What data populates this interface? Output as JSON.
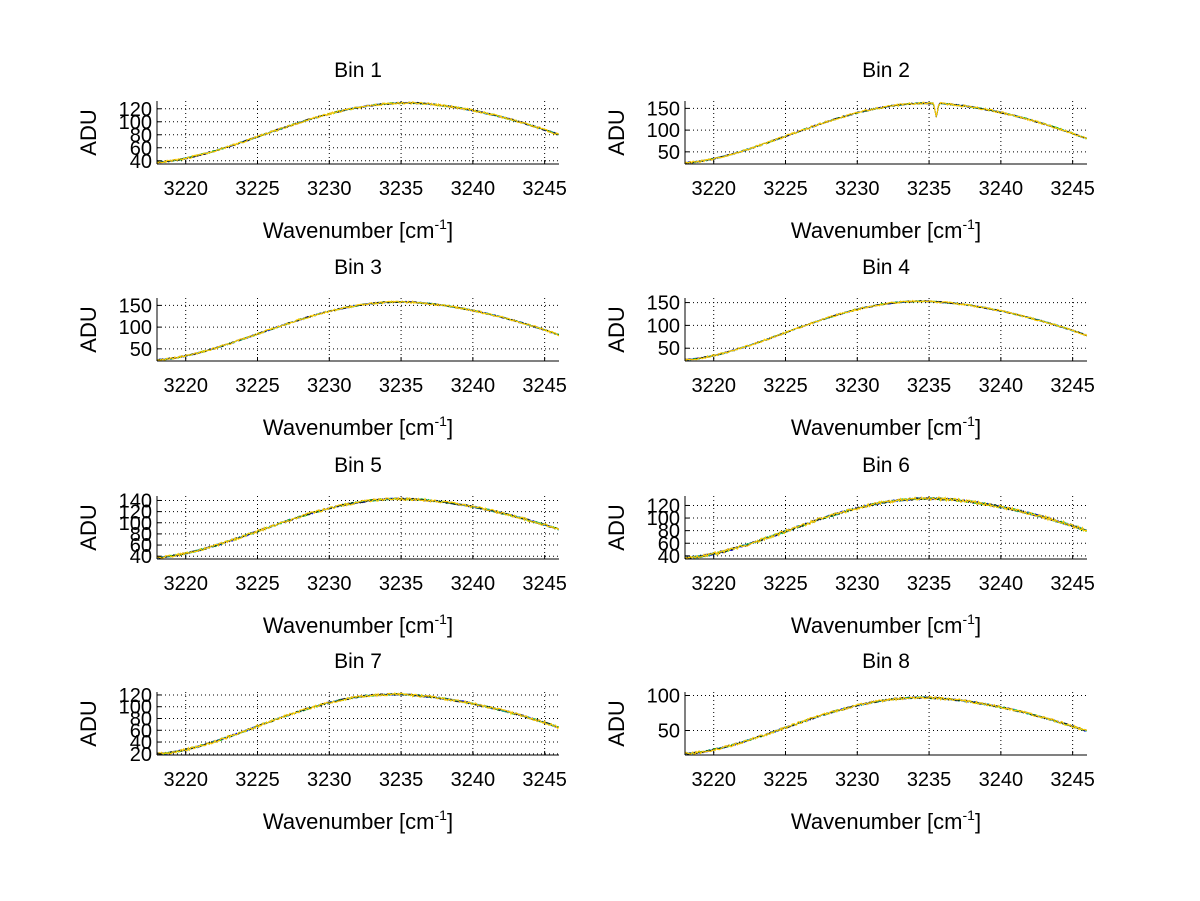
{
  "figure": {
    "background": "#ffffff",
    "axes_color": "#000000",
    "grid_color": "#000000",
    "line_colors": [
      "#0000ff",
      "#00cc00",
      "#2aa0a0",
      "#1a1a1a",
      "#ffcc00"
    ]
  },
  "chart_data": [
    {
      "type": "line",
      "title": "Bin 1",
      "xlabel": "Wavenumber [cm",
      "xlabel_sup": "-1",
      "xlabel_close": "]",
      "ylabel": "ADU",
      "xlim": [
        3218,
        3246
      ],
      "ylim": [
        35,
        132
      ],
      "xticks": [
        3220,
        3225,
        3230,
        3235,
        3240,
        3245
      ],
      "xtick_labels": [
        "3220",
        "3225",
        "3230",
        "3235",
        "3240",
        "3245"
      ],
      "yticks": [
        40,
        60,
        80,
        100,
        120
      ],
      "ytick_labels": [
        "40",
        "60",
        "80",
        "100",
        "120"
      ],
      "grid": true,
      "series_count": 5,
      "profile": {
        "min": 38,
        "peak": 129,
        "peak_x": 3235.5,
        "end": 80,
        "noise": 1.3,
        "dip_x": null,
        "dip_depth": 0
      }
    },
    {
      "type": "line",
      "title": "Bin 2",
      "xlabel": "Wavenumber [cm",
      "xlabel_sup": "-1",
      "xlabel_close": "]",
      "ylabel": "ADU",
      "xlim": [
        3218,
        3246
      ],
      "ylim": [
        22,
        167
      ],
      "xticks": [
        3220,
        3225,
        3230,
        3235,
        3240,
        3245
      ],
      "xtick_labels": [
        "3220",
        "3225",
        "3230",
        "3235",
        "3240",
        "3245"
      ],
      "yticks": [
        50,
        100,
        150
      ],
      "ytick_labels": [
        "50",
        "100",
        "150"
      ],
      "grid": true,
      "series_count": 5,
      "profile": {
        "min": 25,
        "peak": 162,
        "peak_x": 3235,
        "end": 80,
        "noise": 1.8,
        "dip_x": 3235.5,
        "dip_depth": 30
      }
    },
    {
      "type": "line",
      "title": "Bin 3",
      "xlabel": "Wavenumber [cm",
      "xlabel_sup": "-1",
      "xlabel_close": "]",
      "ylabel": "ADU",
      "xlim": [
        3218,
        3246
      ],
      "ylim": [
        22,
        167
      ],
      "xticks": [
        3220,
        3225,
        3230,
        3235,
        3240,
        3245
      ],
      "xtick_labels": [
        "3220",
        "3225",
        "3230",
        "3235",
        "3240",
        "3245"
      ],
      "yticks": [
        50,
        100,
        150
      ],
      "ytick_labels": [
        "50",
        "100",
        "150"
      ],
      "grid": true,
      "series_count": 5,
      "profile": {
        "min": 25,
        "peak": 158,
        "peak_x": 3235,
        "end": 82,
        "noise": 1.8,
        "dip_x": null,
        "dip_depth": 0
      }
    },
    {
      "type": "line",
      "title": "Bin 4",
      "xlabel": "Wavenumber [cm",
      "xlabel_sup": "-1",
      "xlabel_close": "]",
      "ylabel": "ADU",
      "xlim": [
        3218,
        3246
      ],
      "ylim": [
        22,
        160
      ],
      "xticks": [
        3220,
        3225,
        3230,
        3235,
        3240,
        3245
      ],
      "xtick_labels": [
        "3220",
        "3225",
        "3230",
        "3235",
        "3240",
        "3245"
      ],
      "yticks": [
        50,
        100,
        150
      ],
      "ytick_labels": [
        "50",
        "100",
        "150"
      ],
      "grid": true,
      "series_count": 5,
      "profile": {
        "min": 25,
        "peak": 153,
        "peak_x": 3234.5,
        "end": 78,
        "noise": 1.6,
        "dip_x": null,
        "dip_depth": 0
      }
    },
    {
      "type": "line",
      "title": "Bin 5",
      "xlabel": "Wavenumber [cm",
      "xlabel_sup": "-1",
      "xlabel_close": "]",
      "ylabel": "ADU",
      "xlim": [
        3218,
        3246
      ],
      "ylim": [
        35,
        148
      ],
      "xticks": [
        3220,
        3225,
        3230,
        3235,
        3240,
        3245
      ],
      "xtick_labels": [
        "3220",
        "3225",
        "3230",
        "3235",
        "3240",
        "3245"
      ],
      "yticks": [
        40,
        60,
        80,
        100,
        120,
        140
      ],
      "ytick_labels": [
        "40",
        "60",
        "80",
        "100",
        "120",
        "140"
      ],
      "grid": true,
      "series_count": 5,
      "profile": {
        "min": 38,
        "peak": 143,
        "peak_x": 3235,
        "end": 88,
        "noise": 1.8,
        "dip_x": null,
        "dip_depth": 0
      }
    },
    {
      "type": "line",
      "title": "Bin 6",
      "xlabel": "Wavenumber [cm",
      "xlabel_sup": "-1",
      "xlabel_close": "]",
      "ylabel": "ADU",
      "xlim": [
        3218,
        3246
      ],
      "ylim": [
        35,
        135
      ],
      "xticks": [
        3220,
        3225,
        3230,
        3235,
        3240,
        3245
      ],
      "xtick_labels": [
        "3220",
        "3225",
        "3230",
        "3235",
        "3240",
        "3245"
      ],
      "yticks": [
        40,
        60,
        80,
        100,
        120
      ],
      "ytick_labels": [
        "40",
        "60",
        "80",
        "100",
        "120"
      ],
      "grid": true,
      "series_count": 5,
      "profile": {
        "min": 37,
        "peak": 131,
        "peak_x": 3235,
        "end": 80,
        "noise": 2.0,
        "dip_x": null,
        "dip_depth": 0
      }
    },
    {
      "type": "line",
      "title": "Bin 7",
      "xlabel": "Wavenumber [cm",
      "xlabel_sup": "-1",
      "xlabel_close": "]",
      "ylabel": "ADU",
      "xlim": [
        3218,
        3246
      ],
      "ylim": [
        18,
        125
      ],
      "xticks": [
        3220,
        3225,
        3230,
        3235,
        3240,
        3245
      ],
      "xtick_labels": [
        "3220",
        "3225",
        "3230",
        "3235",
        "3240",
        "3245"
      ],
      "yticks": [
        20,
        40,
        60,
        80,
        100,
        120
      ],
      "ytick_labels": [
        "20",
        "40",
        "60",
        "80",
        "100",
        "120"
      ],
      "grid": true,
      "series_count": 5,
      "profile": {
        "min": 20,
        "peak": 121,
        "peak_x": 3234.5,
        "end": 65,
        "noise": 1.7,
        "dip_x": null,
        "dip_depth": 0
      }
    },
    {
      "type": "line",
      "title": "Bin 8",
      "xlabel": "Wavenumber [cm",
      "xlabel_sup": "-1",
      "xlabel_close": "]",
      "ylabel": "ADU",
      "xlim": [
        3218,
        3246
      ],
      "ylim": [
        15,
        105
      ],
      "xticks": [
        3220,
        3225,
        3230,
        3235,
        3240,
        3245
      ],
      "xtick_labels": [
        "3220",
        "3225",
        "3230",
        "3235",
        "3240",
        "3245"
      ],
      "yticks": [
        50,
        100
      ],
      "ytick_labels": [
        "50",
        "100"
      ],
      "grid": true,
      "series_count": 5,
      "profile": {
        "min": 17,
        "peak": 97,
        "peak_x": 3234.5,
        "end": 49,
        "noise": 1.4,
        "dip_x": null,
        "dip_depth": 0
      }
    }
  ]
}
